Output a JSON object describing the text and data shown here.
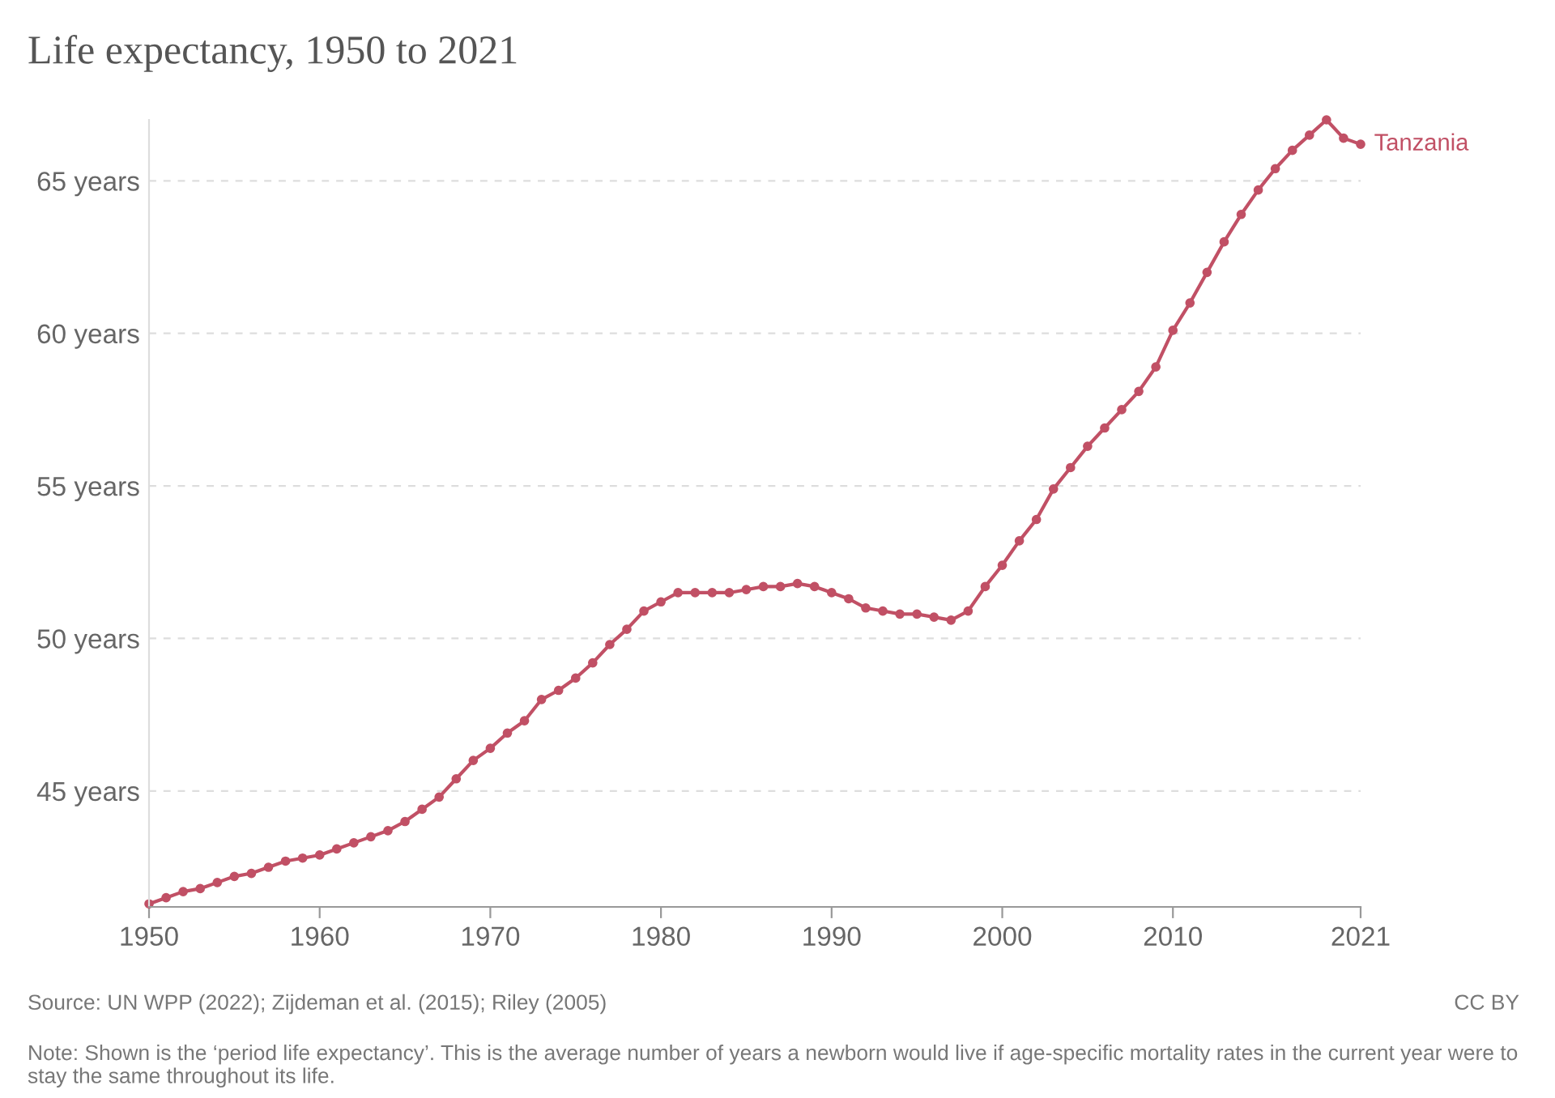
{
  "chart_data": {
    "type": "line",
    "title": "Life expectancy, 1950 to 2021",
    "x": [
      1950,
      1951,
      1952,
      1953,
      1954,
      1955,
      1956,
      1957,
      1958,
      1959,
      1960,
      1961,
      1962,
      1963,
      1964,
      1965,
      1966,
      1967,
      1968,
      1969,
      1970,
      1971,
      1972,
      1973,
      1974,
      1975,
      1976,
      1977,
      1978,
      1979,
      1980,
      1981,
      1982,
      1983,
      1984,
      1985,
      1986,
      1987,
      1988,
      1989,
      1990,
      1991,
      1992,
      1993,
      1994,
      1995,
      1996,
      1997,
      1998,
      1999,
      2000,
      2001,
      2002,
      2003,
      2004,
      2005,
      2006,
      2007,
      2008,
      2009,
      2010,
      2011,
      2012,
      2013,
      2014,
      2015,
      2016,
      2017,
      2018,
      2019,
      2020,
      2021
    ],
    "series": [
      {
        "name": "Tanzania",
        "color": "#c15065",
        "values": [
          41.3,
          41.5,
          41.7,
          41.8,
          42.0,
          42.2,
          42.3,
          42.5,
          42.7,
          42.8,
          42.9,
          43.1,
          43.3,
          43.5,
          43.7,
          44.0,
          44.4,
          44.8,
          45.4,
          46.0,
          46.4,
          46.9,
          47.3,
          48.0,
          48.3,
          48.7,
          49.2,
          49.8,
          50.3,
          50.9,
          51.2,
          51.5,
          51.5,
          51.5,
          51.5,
          51.6,
          51.7,
          51.7,
          51.8,
          51.7,
          51.5,
          51.3,
          51.0,
          50.9,
          50.8,
          50.8,
          50.7,
          50.6,
          50.9,
          51.7,
          52.4,
          53.2,
          53.9,
          54.9,
          55.6,
          56.3,
          56.9,
          57.5,
          58.1,
          58.9,
          60.1,
          61.0,
          62.0,
          63.0,
          63.9,
          64.7,
          65.4,
          66.0,
          66.5,
          67.0,
          66.4,
          66.2
        ]
      }
    ],
    "xlim": [
      1950,
      2021
    ],
    "xticks": [
      1950,
      1960,
      1970,
      1980,
      1990,
      2000,
      2010,
      2021
    ],
    "ylim": [
      41.2,
      67.0
    ],
    "yticks": [
      {
        "value": 45,
        "label": "45 years"
      },
      {
        "value": 50,
        "label": "50 years"
      },
      {
        "value": 55,
        "label": "55 years"
      },
      {
        "value": 60,
        "label": "60 years"
      },
      {
        "value": 65,
        "label": "65 years"
      }
    ],
    "grid": "y",
    "marker": "circle",
    "line_style": "solid",
    "legend": false,
    "annotations": [
      "Source: UN WPP (2022); Zijdeman et al. (2015); Riley (2005)",
      "CC BY",
      "Note: Shown is the ‘period life expectancy’. This is the average number of years a newborn would live if age-specific mortality rates in the current year were to stay the same throughout its life."
    ]
  }
}
